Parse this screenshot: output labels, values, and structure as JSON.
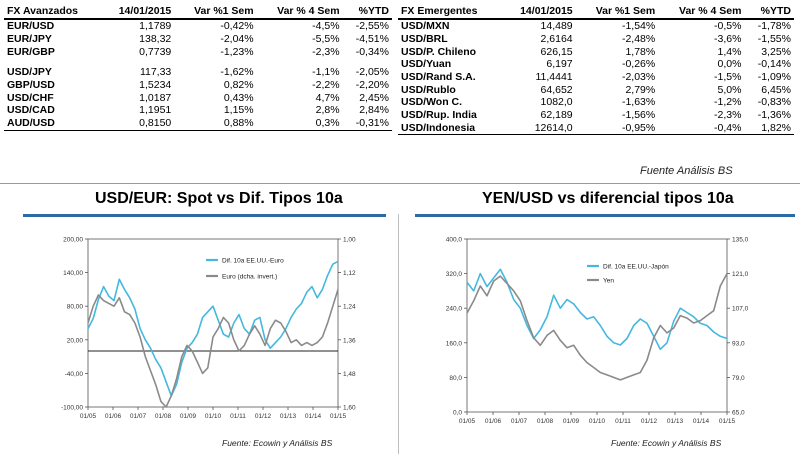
{
  "left_table": {
    "headers": [
      "FX Avanzados",
      "14/01/2015",
      "Var %1 Sem",
      "Var % 4 Sem",
      "%YTD"
    ],
    "rows": [
      [
        "EUR/USD",
        "1,1789",
        "-0,42%",
        "-4,5%",
        "-2,55%"
      ],
      [
        "EUR/JPY",
        "138,32",
        "-2,04%",
        "-5,5%",
        "-4,51%"
      ],
      [
        "EUR/GBP",
        "0,7739",
        "-1,23%",
        "-2,3%",
        "-0,34%"
      ],
      [
        "USD/JPY",
        "117,33",
        "-1,62%",
        "-1,1%",
        "-2,05%"
      ],
      [
        "GBP/USD",
        "1,5234",
        "0,82%",
        "-2,2%",
        "-2,20%"
      ],
      [
        "USD/CHF",
        "1,0187",
        "0,43%",
        "4,7%",
        "2,45%"
      ],
      [
        "USD/CAD",
        "1,1951",
        "1,15%",
        "2,8%",
        "2,84%"
      ],
      [
        "AUD/USD",
        "0,8150",
        "0,88%",
        "0,3%",
        "-0,31%"
      ]
    ]
  },
  "right_table": {
    "headers": [
      "FX Emergentes",
      "14/01/2015",
      "Var %1 Sem",
      "Var % 4 Sem",
      "%YTD"
    ],
    "rows": [
      [
        "USD/MXN",
        "14,489",
        "-1,54%",
        "-0,5%",
        "-1,78%"
      ],
      [
        "USD/BRL",
        "2,6164",
        "-2,48%",
        "-3,6%",
        "-1,55%"
      ],
      [
        "USD/P. Chileno",
        "626,15",
        "1,78%",
        "1,4%",
        "3,25%"
      ],
      [
        "USD/Yuan",
        "6,197",
        "-0,26%",
        "0,0%",
        "-0,14%"
      ],
      [
        "USD/Rand S.A.",
        "11,4441",
        "-2,03%",
        "-1,5%",
        "-1,09%"
      ],
      [
        "USD/Rublo",
        "64,652",
        "2,79%",
        "5,0%",
        "6,45%"
      ],
      [
        "USD/Won C.",
        "1082,0",
        "-1,63%",
        "-1,2%",
        "-0,83%"
      ],
      [
        "USD/Rup. India",
        "62,189",
        "-1,56%",
        "-2,3%",
        "-1,36%"
      ],
      [
        "USD/Indonesia",
        "12614,0",
        "-0,95%",
        "-0,4%",
        "1,82%"
      ]
    ]
  },
  "source_top": "Fuente Análisis BS",
  "colors": {
    "series_primary": "#44b8de",
    "series_secondary": "#8a8a8a",
    "title_bar": "#2b6ca8"
  },
  "chart_data": [
    {
      "type": "line",
      "title": "USD/EUR: Spot vs Dif. Tipos 10a",
      "x_labels": [
        "01/05",
        "01/06",
        "01/07",
        "01/08",
        "01/09",
        "01/10",
        "01/11",
        "01/12",
        "01/13",
        "01/14",
        "01/15"
      ],
      "y_left": {
        "min": -100,
        "max": 200,
        "ticks": [
          "200,00",
          "140,00",
          "80,00",
          "20,00",
          "-40,00",
          "-100,00"
        ]
      },
      "y_right": {
        "min": 1.0,
        "max": 1.6,
        "inverted": true,
        "ticks": [
          "1,00",
          "1,12",
          "1,24",
          "1,36",
          "1,48",
          "1,60"
        ]
      },
      "reference_line_left": 0,
      "series": [
        {
          "name": "Dif. 10a EE.UU.-Euro",
          "axis": "left",
          "values": [
            40,
            58,
            92,
            115,
            98,
            90,
            128,
            110,
            95,
            75,
            40,
            20,
            5,
            -15,
            -30,
            -55,
            -80,
            -60,
            -20,
            5,
            15,
            30,
            60,
            70,
            80,
            55,
            30,
            25,
            50,
            65,
            40,
            30,
            55,
            60,
            20,
            5,
            15,
            25,
            40,
            60,
            75,
            85,
            105,
            115,
            95,
            110,
            135,
            155,
            160
          ]
        },
        {
          "name": "Euro (dcha. invert.)",
          "axis": "right",
          "values": [
            1.3,
            1.24,
            1.2,
            1.22,
            1.23,
            1.24,
            1.21,
            1.26,
            1.27,
            1.3,
            1.35,
            1.42,
            1.47,
            1.52,
            1.58,
            1.6,
            1.56,
            1.5,
            1.42,
            1.38,
            1.4,
            1.44,
            1.48,
            1.46,
            1.35,
            1.32,
            1.28,
            1.3,
            1.36,
            1.4,
            1.38,
            1.34,
            1.31,
            1.34,
            1.38,
            1.32,
            1.29,
            1.3,
            1.33,
            1.37,
            1.36,
            1.38,
            1.37,
            1.38,
            1.37,
            1.35,
            1.3,
            1.24,
            1.18
          ]
        }
      ]
    },
    {
      "type": "line",
      "title": "YEN/USD vs diferencial tipos 10a",
      "x_labels": [
        "01/05",
        "01/06",
        "01/07",
        "01/08",
        "01/09",
        "01/10",
        "01/11",
        "01/12",
        "01/13",
        "01/14",
        "01/15"
      ],
      "y_left": {
        "min": 0,
        "max": 400,
        "ticks": [
          "400,0",
          "320,0",
          "240,0",
          "160,0",
          "80,0",
          "0,0"
        ]
      },
      "y_right": {
        "min": 65.0,
        "max": 135.0,
        "ticks": [
          "135,0",
          "121,0",
          "107,0",
          "93,0",
          "79,0",
          "65,0"
        ]
      },
      "series": [
        {
          "name": "Dif. 10a EE.UU.-Japón",
          "axis": "left",
          "values": [
            300,
            280,
            320,
            290,
            310,
            330,
            300,
            260,
            240,
            200,
            170,
            190,
            220,
            270,
            240,
            260,
            250,
            230,
            215,
            220,
            200,
            175,
            160,
            155,
            170,
            200,
            215,
            205,
            175,
            145,
            160,
            210,
            240,
            230,
            220,
            205,
            200,
            185,
            175,
            170
          ]
        },
        {
          "name": "Yen",
          "axis": "right",
          "values": [
            105,
            110,
            116,
            112,
            118,
            120,
            117,
            114,
            110,
            102,
            95,
            92,
            96,
            98,
            94,
            91,
            92,
            88,
            85,
            83,
            81,
            80,
            79,
            78,
            79,
            80,
            81,
            86,
            95,
            100,
            97,
            99,
            104,
            103,
            101,
            102,
            104,
            106,
            116,
            121
          ]
        }
      ]
    }
  ],
  "source_chart": "Fuente: Ecowin y Análisis BS"
}
